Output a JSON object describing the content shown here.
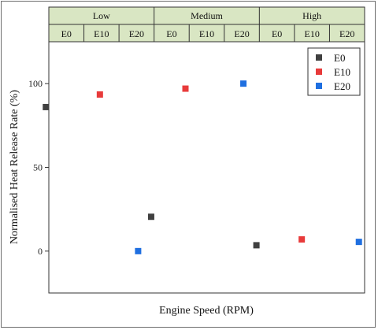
{
  "chart_data": {
    "type": "scatter",
    "title": "",
    "xlabel": "Engine Speed (RPM)",
    "ylabel": "Normalised Heat Release Rate (%)",
    "ylim": [
      -25,
      125
    ],
    "yticks": [
      0,
      50,
      100
    ],
    "grid": false,
    "legend_position": "top-right",
    "groups": [
      "Low",
      "Medium",
      "High"
    ],
    "categories": [
      "E0",
      "E10",
      "E20",
      "E0",
      "E10",
      "E20",
      "E0",
      "E10",
      "E20"
    ],
    "series": [
      {
        "name": "E0",
        "color": "#404040",
        "x_index": [
          0,
          3,
          6
        ],
        "values": [
          86,
          20.5,
          3.5
        ]
      },
      {
        "name": "E10",
        "color": "#e83a3a",
        "x_index": [
          1,
          4,
          7
        ],
        "values": [
          93.5,
          97,
          7
        ]
      },
      {
        "name": "E20",
        "color": "#1f6fe0",
        "x_index": [
          2,
          5,
          8
        ],
        "values": [
          0,
          100,
          5.5
        ]
      }
    ],
    "header_color": "#d9e6c3"
  }
}
